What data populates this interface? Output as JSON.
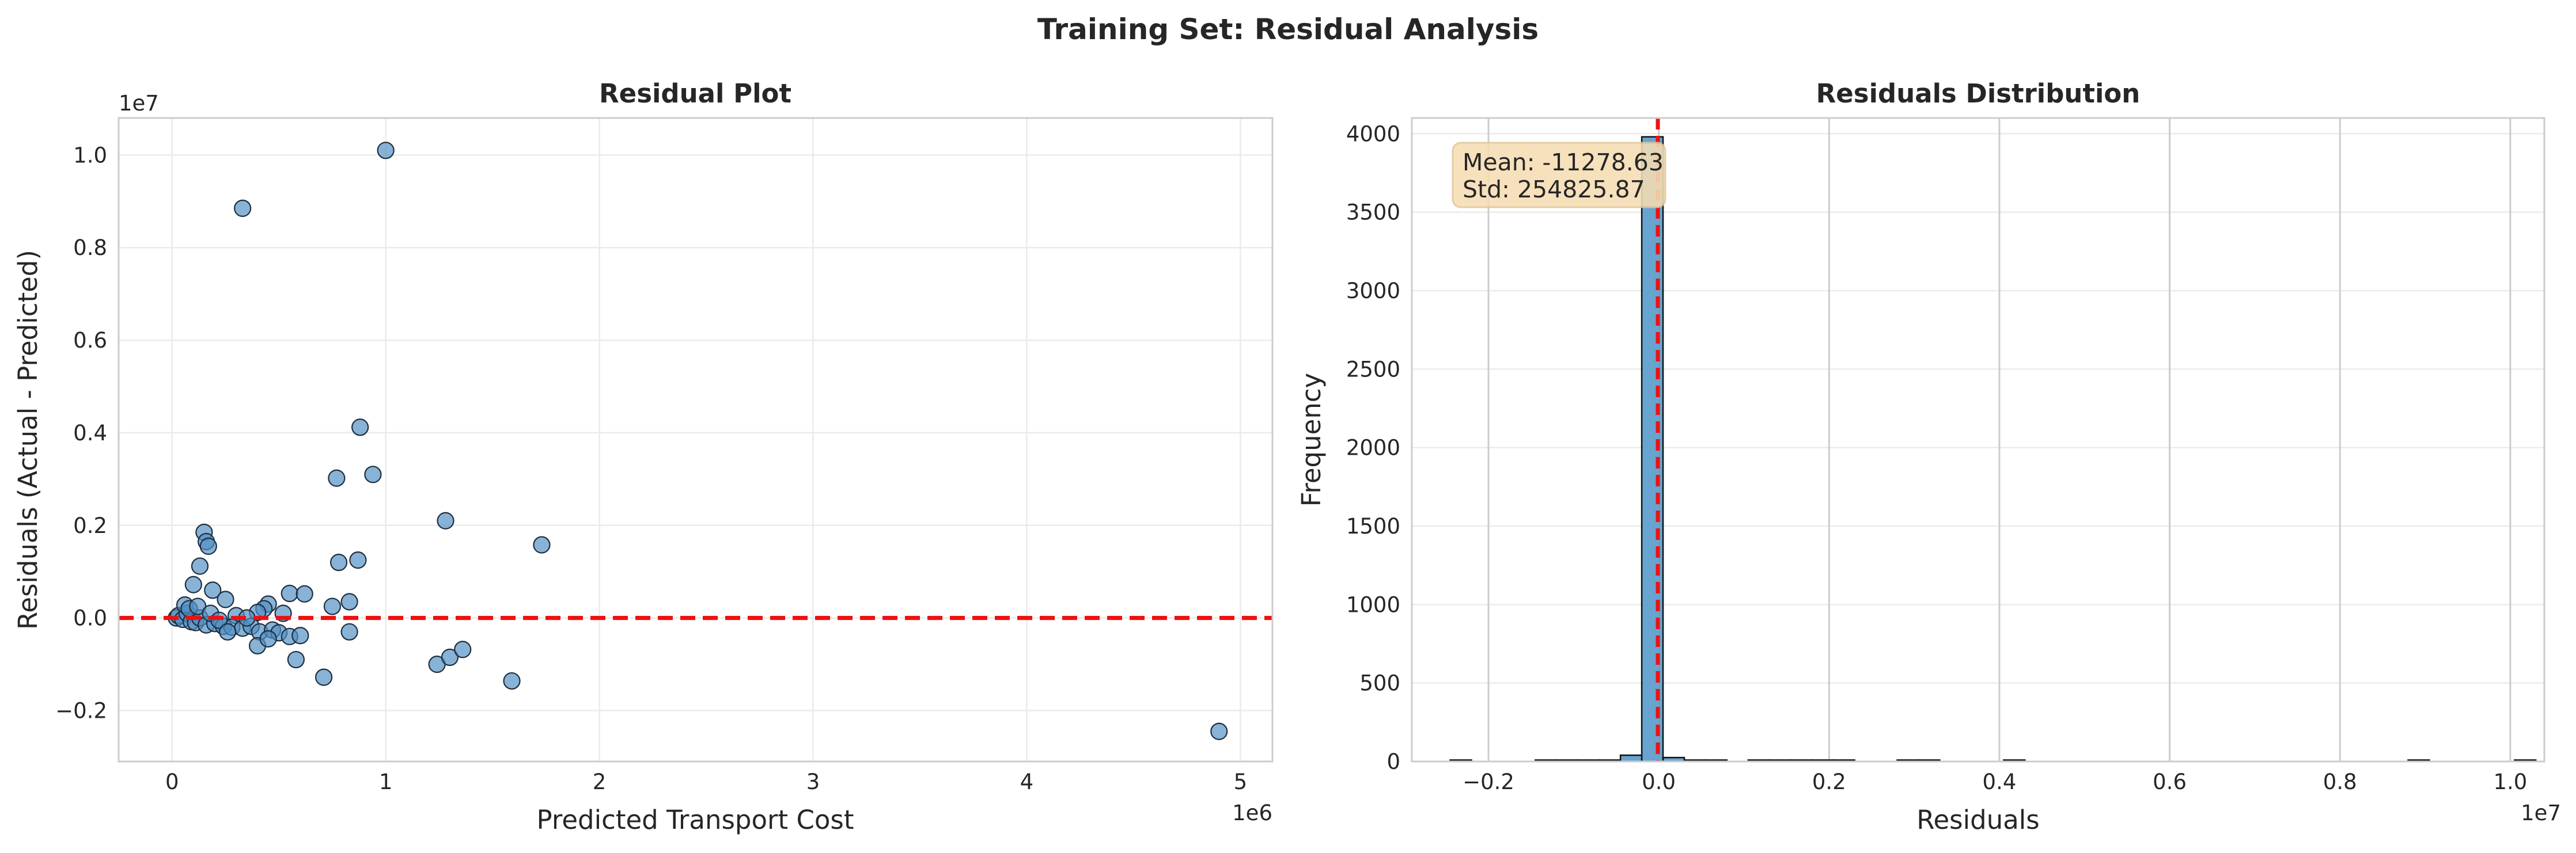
{
  "figure": {
    "suptitle": "Training Set: Residual Analysis",
    "colors": {
      "background": "#ffffff",
      "grid": "#ebebeb",
      "grid_strong": "#cccccc",
      "axes_edge": "#cccccc",
      "point_fill": "#4f8fc4",
      "point_edge": "#1f2f3f",
      "zero_line": "#ee1111",
      "bar_fill": "#5f9fce",
      "bar_edge": "#111111",
      "stats_box_fill": "#f5deb3",
      "stats_box_edge": "#e1c79b"
    }
  },
  "stats_box": {
    "mean_text": "Mean: -11278.63",
    "std_text": "Std: 254825.87"
  },
  "chart_data": [
    {
      "type": "scatter",
      "title": "Residual Plot",
      "xlabel": "Predicted Transport Cost",
      "ylabel": "Residuals (Actual - Predicted)",
      "x_offset_label": "1e6",
      "y_offset_label": "1e7",
      "xlim": [
        -0.25,
        5.15
      ],
      "ylim": [
        -0.31,
        1.08
      ],
      "x_ticks": [
        0,
        1,
        2,
        3,
        4,
        5
      ],
      "y_ticks": [
        -0.2,
        0.0,
        0.2,
        0.4,
        0.6,
        0.8,
        1.0
      ],
      "x_tick_labels": [
        "0",
        "1",
        "2",
        "3",
        "4",
        "5"
      ],
      "y_tick_labels": [
        "−0.2",
        "0.0",
        "0.2",
        "0.4",
        "0.6",
        "0.8",
        "1.0"
      ],
      "reference_line_y": 0,
      "grid": true,
      "points": [
        [
          1.0,
          1.01
        ],
        [
          0.33,
          0.885
        ],
        [
          0.88,
          0.412
        ],
        [
          0.94,
          0.31
        ],
        [
          0.77,
          0.302
        ],
        [
          1.28,
          0.21
        ],
        [
          1.73,
          0.158
        ],
        [
          0.15,
          0.185
        ],
        [
          0.16,
          0.165
        ],
        [
          0.17,
          0.155
        ],
        [
          0.78,
          0.12
        ],
        [
          0.87,
          0.125
        ],
        [
          0.13,
          0.112
        ],
        [
          0.1,
          0.072
        ],
        [
          0.19,
          0.06
        ],
        [
          0.55,
          0.053
        ],
        [
          0.62,
          0.052
        ],
        [
          0.25,
          0.04
        ],
        [
          0.83,
          0.035
        ],
        [
          0.75,
          0.025
        ],
        [
          0.45,
          0.03
        ],
        [
          0.43,
          0.02
        ],
        [
          0.4,
          0.012
        ],
        [
          0.52,
          0.01
        ],
        [
          0.3,
          0.005
        ],
        [
          0.02,
          0.0
        ],
        [
          0.03,
          0.005
        ],
        [
          0.05,
          -0.003
        ],
        [
          0.07,
          0.01
        ],
        [
          0.09,
          -0.008
        ],
        [
          0.11,
          -0.01
        ],
        [
          0.13,
          0.0
        ],
        [
          0.16,
          -0.015
        ],
        [
          0.2,
          -0.012
        ],
        [
          0.24,
          -0.018
        ],
        [
          0.28,
          -0.02
        ],
        [
          0.33,
          -0.022
        ],
        [
          0.37,
          -0.018
        ],
        [
          0.41,
          -0.03
        ],
        [
          0.47,
          -0.026
        ],
        [
          0.5,
          -0.032
        ],
        [
          0.55,
          -0.04
        ],
        [
          0.6,
          -0.038
        ],
        [
          0.83,
          -0.03
        ],
        [
          0.58,
          -0.09
        ],
        [
          0.4,
          -0.06
        ],
        [
          0.45,
          -0.045
        ],
        [
          0.71,
          -0.128
        ],
        [
          1.24,
          -0.1
        ],
        [
          1.3,
          -0.085
        ],
        [
          1.36,
          -0.068
        ],
        [
          1.59,
          -0.136
        ],
        [
          4.9,
          -0.245
        ],
        [
          0.06,
          0.028
        ],
        [
          0.08,
          0.02
        ],
        [
          0.12,
          0.025
        ],
        [
          0.18,
          0.01
        ],
        [
          0.22,
          -0.005
        ],
        [
          0.26,
          -0.03
        ],
        [
          0.35,
          0.0
        ]
      ]
    },
    {
      "type": "bar",
      "title": "Residuals Distribution",
      "xlabel": "Residuals",
      "ylabel": "Frequency",
      "x_offset_label": "1e7",
      "xlim": [
        -0.29,
        1.04
      ],
      "ylim": [
        0,
        4100
      ],
      "x_ticks": [
        -0.2,
        0.0,
        0.2,
        0.4,
        0.6,
        0.8,
        1.0
      ],
      "y_ticks": [
        0,
        500,
        1000,
        1500,
        2000,
        2500,
        3000,
        3500,
        4000
      ],
      "x_tick_labels": [
        "−0.2",
        "0.0",
        "0.2",
        "0.4",
        "0.6",
        "0.8",
        "1.0"
      ],
      "y_tick_labels": [
        "0",
        "500",
        "1000",
        "1500",
        "2000",
        "2500",
        "3000",
        "3500",
        "4000"
      ],
      "mean_line_x": -0.0011,
      "grid": true,
      "bins": [
        {
          "start": -0.245,
          "end": -0.22,
          "count": 2
        },
        {
          "start": -0.145,
          "end": -0.12,
          "count": 3
        },
        {
          "start": -0.12,
          "end": -0.095,
          "count": 4
        },
        {
          "start": -0.095,
          "end": -0.07,
          "count": 5
        },
        {
          "start": -0.07,
          "end": -0.045,
          "count": 8
        },
        {
          "start": -0.045,
          "end": -0.02,
          "count": 40
        },
        {
          "start": -0.02,
          "end": 0.005,
          "count": 3980
        },
        {
          "start": 0.005,
          "end": 0.03,
          "count": 25
        },
        {
          "start": 0.03,
          "end": 0.055,
          "count": 8
        },
        {
          "start": 0.055,
          "end": 0.08,
          "count": 3
        },
        {
          "start": 0.105,
          "end": 0.13,
          "count": 2
        },
        {
          "start": 0.13,
          "end": 0.155,
          "count": 2
        },
        {
          "start": 0.155,
          "end": 0.18,
          "count": 3
        },
        {
          "start": 0.18,
          "end": 0.205,
          "count": 2
        },
        {
          "start": 0.205,
          "end": 0.23,
          "count": 1
        },
        {
          "start": 0.28,
          "end": 0.305,
          "count": 2
        },
        {
          "start": 0.305,
          "end": 0.33,
          "count": 1
        },
        {
          "start": 0.405,
          "end": 0.43,
          "count": 1
        },
        {
          "start": 0.88,
          "end": 0.905,
          "count": 1
        },
        {
          "start": 1.005,
          "end": 1.03,
          "count": 1
        }
      ]
    }
  ]
}
